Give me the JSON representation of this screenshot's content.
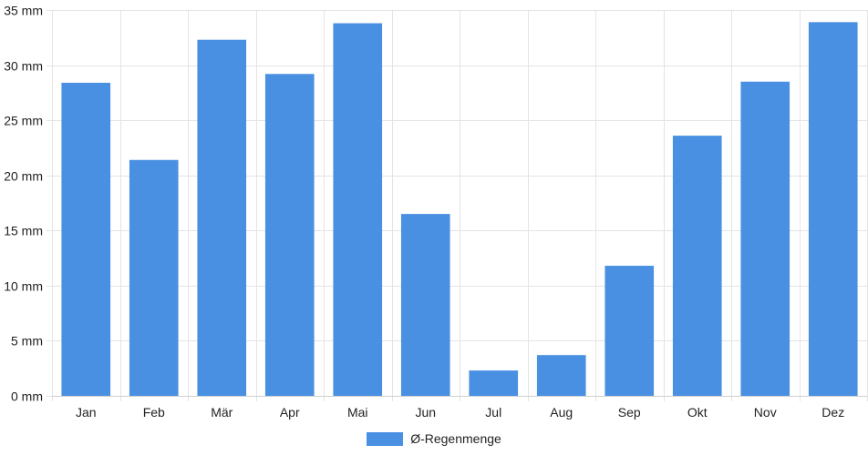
{
  "chart_data": {
    "type": "bar",
    "categories": [
      "Jan",
      "Feb",
      "Mär",
      "Apr",
      "Mai",
      "Jun",
      "Jul",
      "Aug",
      "Sep",
      "Okt",
      "Nov",
      "Dez"
    ],
    "series": [
      {
        "name": "Ø-Regenmenge",
        "values": [
          28.4,
          21.4,
          32.3,
          29.2,
          33.8,
          16.5,
          2.3,
          3.7,
          11.8,
          23.6,
          28.5,
          33.9
        ],
        "color": "#4a90e2"
      }
    ],
    "y_ticks": [
      0,
      5,
      10,
      15,
      20,
      25,
      30,
      35
    ],
    "y_unit_suffix": " mm",
    "ylim": [
      0,
      35
    ],
    "grid": true,
    "legend_position": "bottom",
    "title": "",
    "xlabel": "",
    "ylabel": ""
  }
}
